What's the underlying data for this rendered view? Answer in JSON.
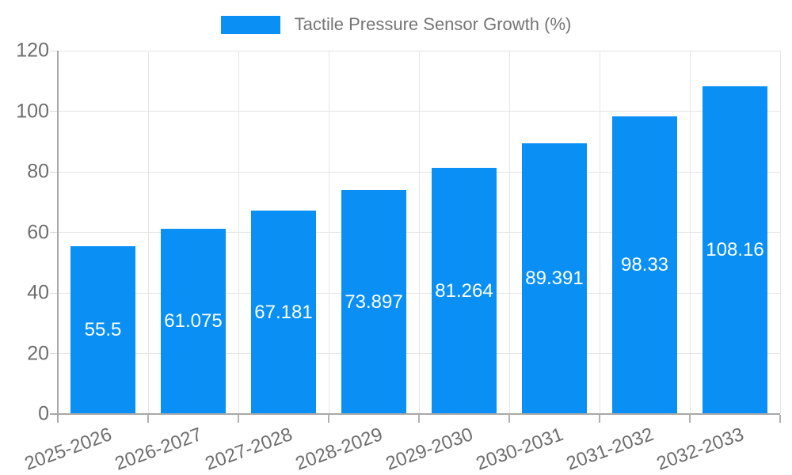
{
  "legend": {
    "label": "Tactile Pressure Sensor Growth (%)"
  },
  "chart_data": {
    "type": "bar",
    "title": "Tactile Pressure Sensor Growth (%)",
    "categories": [
      "2025-2026",
      "2026-2027",
      "2027-2028",
      "2028-2029",
      "2029-2030",
      "2030-2031",
      "2031-2032",
      "2032-2033"
    ],
    "values": [
      55.5,
      61.075,
      67.181,
      73.897,
      81.264,
      89.391,
      98.33,
      108.16
    ],
    "value_labels": [
      "55.5",
      "61.075",
      "67.181",
      "73.897",
      "81.264",
      "89.391",
      "98.33",
      "108.16"
    ],
    "xlabel": "",
    "ylabel": "",
    "ylim": [
      0,
      120
    ],
    "yticks": [
      0,
      20,
      40,
      60,
      80,
      100,
      120
    ],
    "grid": true,
    "legend_position": "top",
    "colors": {
      "bar": "#0a90f4",
      "legend_text": "#757575",
      "tick_text": "#6e6e6e",
      "gridline": "#e5e5e5",
      "axis_border": "#a8a8a8",
      "value_label": "#ffffff",
      "background": "#ffffff"
    }
  }
}
